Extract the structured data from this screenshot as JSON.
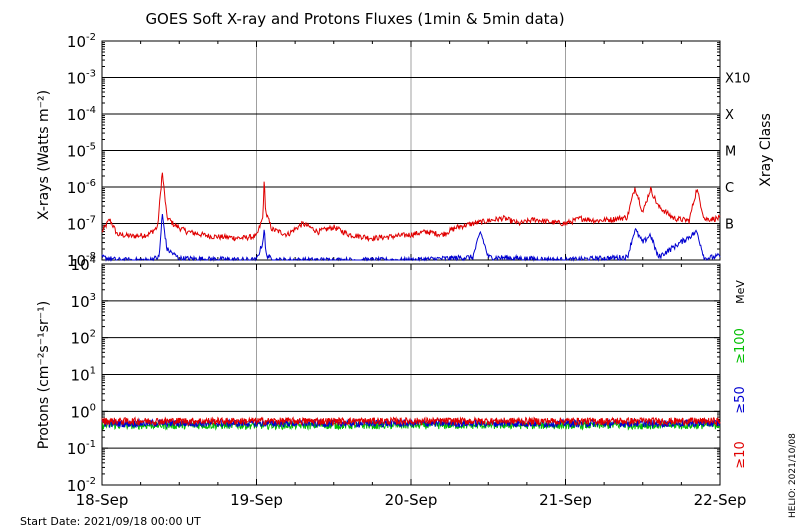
{
  "title": "GOES Soft X-ray and Protons Fluxes   (1min & 5min data)",
  "footer": {
    "start_date": "Start Date: 2021/09/18 00:00 UT",
    "stamp": "HELIO: 2021/10/08"
  },
  "colors": {
    "xray_long": "#e00000",
    "xray_short": "#0000d0",
    "p10": "#e00000",
    "p50": "#0000d0",
    "p100": "#00c000",
    "grid": "#000000",
    "day_lines": "#a0a0a0"
  },
  "chart_data": [
    {
      "type": "line",
      "panel": "xray",
      "ylabel": "X-rays (Watts m⁻²)",
      "yscale": "log",
      "ylim": [
        1e-08,
        0.01
      ],
      "y_ticks": [
        {
          "base": "10",
          "exp": "-8",
          "value": 1e-08
        },
        {
          "base": "10",
          "exp": "-7",
          "value": 1e-07
        },
        {
          "base": "10",
          "exp": "-6",
          "value": 1e-06
        },
        {
          "base": "10",
          "exp": "-5",
          "value": 1e-05
        },
        {
          "base": "10",
          "exp": "-4",
          "value": 0.0001
        },
        {
          "base": "10",
          "exp": "-3",
          "value": 0.001
        },
        {
          "base": "10",
          "exp": "-2",
          "value": 0.01
        }
      ],
      "right_axis_label": "Xray Class",
      "classes": [
        {
          "label": "B",
          "value": 1e-07
        },
        {
          "label": "C",
          "value": 1e-06
        },
        {
          "label": "M",
          "value": 1e-05
        },
        {
          "label": "X",
          "value": 0.0001
        },
        {
          "label": "X10",
          "value": 0.001
        }
      ],
      "x_days": [
        0,
        4
      ],
      "series": [
        {
          "key": "long",
          "points": [
            [
              0,
              6e-08
            ],
            [
              0.05,
              1.3e-07
            ],
            [
              0.1,
              5e-08
            ],
            [
              0.2,
              4.5e-08
            ],
            [
              0.3,
              5e-08
            ],
            [
              0.36,
              8e-08
            ],
            [
              0.39,
              2.6e-06
            ],
            [
              0.42,
              1.5e-07
            ],
            [
              0.47,
              9e-08
            ],
            [
              0.55,
              6e-08
            ],
            [
              0.7,
              4.5e-08
            ],
            [
              0.9,
              4e-08
            ],
            [
              1.0,
              4.5e-08
            ],
            [
              1.04,
              1.4e-07
            ],
            [
              1.05,
              1.6e-06
            ],
            [
              1.06,
              2e-07
            ],
            [
              1.1,
              7e-08
            ],
            [
              1.2,
              5e-08
            ],
            [
              1.3,
              1e-07
            ],
            [
              1.4,
              6e-08
            ],
            [
              1.5,
              8e-08
            ],
            [
              1.6,
              5e-08
            ],
            [
              1.75,
              4e-08
            ],
            [
              1.9,
              4.5e-08
            ],
            [
              2.0,
              5e-08
            ],
            [
              2.1,
              6e-08
            ],
            [
              2.2,
              5e-08
            ],
            [
              2.3,
              8e-08
            ],
            [
              2.4,
              1e-07
            ],
            [
              2.5,
              1.2e-07
            ],
            [
              2.6,
              1.4e-07
            ],
            [
              2.7,
              1e-07
            ],
            [
              2.8,
              1.3e-07
            ],
            [
              2.9,
              1.1e-07
            ],
            [
              3.0,
              1e-07
            ],
            [
              3.1,
              1.4e-07
            ],
            [
              3.2,
              1.2e-07
            ],
            [
              3.3,
              1.3e-07
            ],
            [
              3.4,
              1.5e-07
            ],
            [
              3.45,
              1e-06
            ],
            [
              3.48,
              4e-07
            ],
            [
              3.5,
              2e-07
            ],
            [
              3.55,
              9e-07
            ],
            [
              3.6,
              3e-07
            ],
            [
              3.7,
              1.4e-07
            ],
            [
              3.8,
              1.2e-07
            ],
            [
              3.85,
              9e-07
            ],
            [
              3.9,
              1.3e-07
            ],
            [
              4.0,
              1.4e-07
            ]
          ]
        },
        {
          "key": "short",
          "points": [
            [
              0,
              1.2e-08
            ],
            [
              0.1,
              1e-08
            ],
            [
              0.3,
              1e-08
            ],
            [
              0.37,
              1.2e-08
            ],
            [
              0.39,
              1.8e-07
            ],
            [
              0.42,
              2e-08
            ],
            [
              0.5,
              1.1e-08
            ],
            [
              1.0,
              1e-08
            ],
            [
              1.04,
              3e-08
            ],
            [
              1.05,
              8e-08
            ],
            [
              1.06,
              1.5e-08
            ],
            [
              1.1,
              1e-08
            ],
            [
              2.0,
              1e-08
            ],
            [
              2.4,
              1.2e-08
            ],
            [
              2.45,
              6e-08
            ],
            [
              2.5,
              1.2e-08
            ],
            [
              3.0,
              1e-08
            ],
            [
              3.4,
              1.2e-08
            ],
            [
              3.45,
              7e-08
            ],
            [
              3.5,
              3e-08
            ],
            [
              3.55,
              5e-08
            ],
            [
              3.6,
              1.2e-08
            ],
            [
              3.85,
              6e-08
            ],
            [
              3.9,
              1.1e-08
            ],
            [
              4.0,
              1.3e-08
            ]
          ]
        }
      ]
    },
    {
      "type": "line",
      "panel": "protons",
      "ylabel": "Protons (cm⁻²s⁻¹sr⁻¹)",
      "yscale": "log",
      "ylim": [
        0.01,
        10000
      ],
      "y_ticks": [
        {
          "base": "10",
          "exp": "-2",
          "value": 0.01
        },
        {
          "base": "10",
          "exp": "-1",
          "value": 0.1
        },
        {
          "base": "10",
          "exp": "0",
          "value": 1
        },
        {
          "base": "10",
          "exp": "1",
          "value": 10
        },
        {
          "base": "10",
          "exp": "2",
          "value": 100
        },
        {
          "base": "10",
          "exp": "3",
          "value": 1000
        },
        {
          "base": "10",
          "exp": "4",
          "value": 10000
        }
      ],
      "threshold": 10,
      "right_axis_unit": "MeV",
      "x_categories": [
        "18-Sep",
        "19-Sep",
        "20-Sep",
        "21-Sep",
        "22-Sep"
      ],
      "series": [
        {
          "name": "≥10",
          "key": "p10",
          "level": 0.55
        },
        {
          "name": "≥50",
          "key": "p50",
          "level": 0.48
        },
        {
          "name": "≥100",
          "key": "p100",
          "level": 0.42
        }
      ]
    }
  ]
}
